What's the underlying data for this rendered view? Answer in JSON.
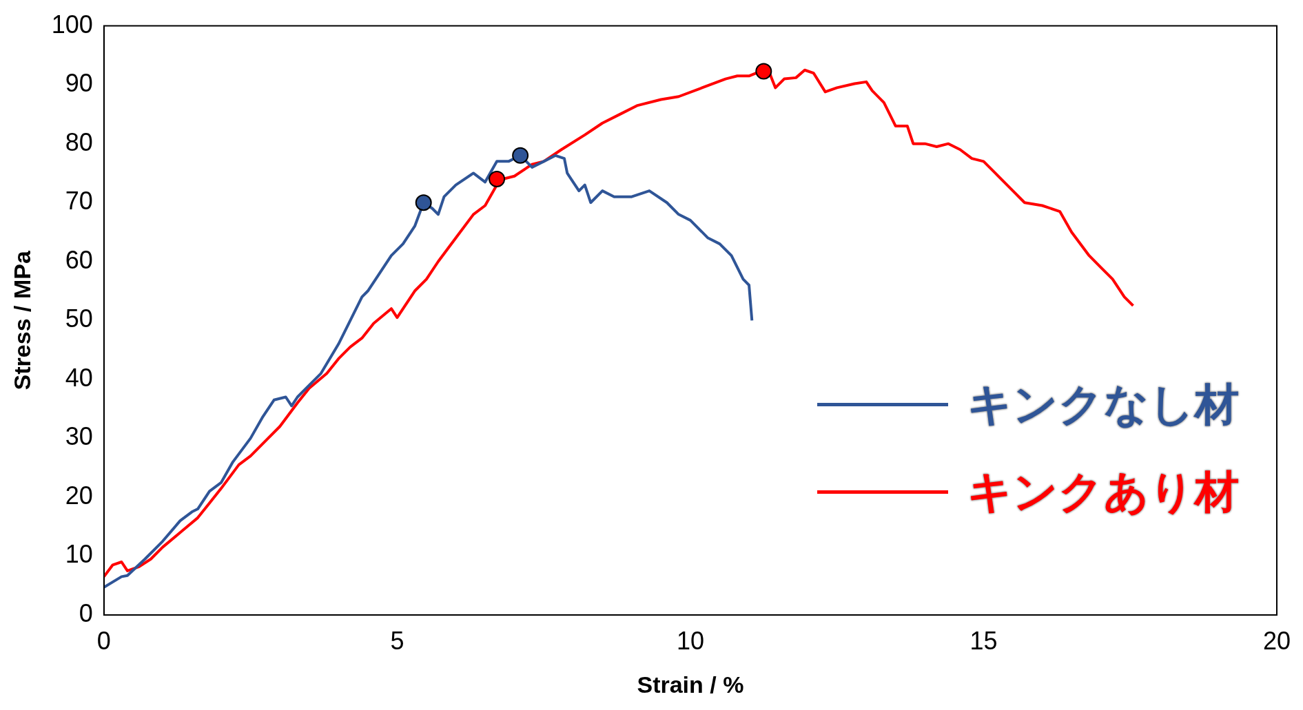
{
  "chart_data": {
    "type": "line",
    "xlabel": "Strain / %",
    "ylabel": "Stress / MPa",
    "xlim": [
      0,
      20
    ],
    "xticks": [
      0,
      5,
      10,
      15,
      20
    ],
    "ylim": [
      0,
      100
    ],
    "yticks": [
      0,
      10,
      20,
      30,
      40,
      50,
      60,
      70,
      80,
      90,
      100
    ],
    "grid": false,
    "legend": "bottom right",
    "marker": "none",
    "line_style": "solid",
    "series": [
      {
        "name": "キンクなし材",
        "color": "#2f5597",
        "x": [
          0,
          0.3,
          0.4,
          0.7,
          1,
          1.3,
          1.5,
          1.6,
          1.8,
          2,
          2.2,
          2.5,
          2.7,
          2.9,
          3.1,
          3.2,
          3.3,
          3.5,
          3.7,
          4,
          4.2,
          4.4,
          4.5,
          4.7,
          4.9,
          5.1,
          5.3,
          5.45,
          5.6,
          5.7,
          5.8,
          6,
          6.3,
          6.5,
          6.7,
          6.9,
          7.1,
          7.3,
          7.5,
          7.7,
          7.85,
          7.9,
          8.1,
          8.2,
          8.3,
          8.5,
          8.7,
          9,
          9.3,
          9.6,
          9.8,
          10,
          10.3,
          10.5,
          10.7,
          10.9,
          11,
          11.05
        ],
        "values": [
          4.7,
          6.5,
          6.7,
          9.5,
          12.5,
          16,
          17.5,
          18,
          21,
          22.5,
          26,
          30,
          33.5,
          36.5,
          37,
          35.5,
          37,
          39,
          41,
          46,
          50,
          54,
          55,
          58,
          61,
          63,
          66,
          70,
          69,
          68,
          71,
          73,
          75,
          73.5,
          77,
          77,
          78,
          76,
          77,
          78,
          77.5,
          75,
          72,
          73,
          70,
          72,
          71,
          71,
          72,
          70,
          68,
          67,
          64,
          63,
          61,
          57,
          56,
          50
        ]
      },
      {
        "name": "キンクあり材",
        "color": "#ff0000",
        "x": [
          0,
          0.15,
          0.3,
          0.4,
          0.6,
          0.8,
          1,
          1.3,
          1.6,
          1.8,
          2,
          2.3,
          2.5,
          2.8,
          3,
          3.3,
          3.5,
          3.8,
          4,
          4.2,
          4.4,
          4.6,
          4.9,
          5,
          5.3,
          5.5,
          5.7,
          6,
          6.3,
          6.5,
          6.7,
          6.8,
          7,
          7.3,
          7.5,
          7.8,
          8.2,
          8.5,
          8.8,
          9.1,
          9.5,
          9.8,
          10.2,
          10.6,
          10.8,
          11,
          11.2,
          11.35,
          11.45,
          11.6,
          11.8,
          11.95,
          12.1,
          12.3,
          12.5,
          12.8,
          13,
          13.1,
          13.3,
          13.5,
          13.7,
          13.8,
          14,
          14.2,
          14.4,
          14.6,
          14.8,
          15,
          15.2,
          15.5,
          15.7,
          16,
          16.3,
          16.5,
          16.8,
          17,
          17.2,
          17.4,
          17.55
        ],
        "values": [
          6.5,
          8.5,
          9,
          7.5,
          8.2,
          9.5,
          11.5,
          14,
          16.5,
          19,
          21.5,
          25.5,
          27,
          30,
          32,
          36,
          38.5,
          41,
          43.5,
          45.5,
          47,
          49.5,
          52,
          50.5,
          55,
          57,
          60,
          64,
          68,
          69.5,
          73,
          74,
          74.5,
          76.5,
          77,
          79,
          81.5,
          83.5,
          85,
          86.5,
          87.5,
          88,
          89.5,
          91,
          91.5,
          91.5,
          92.3,
          92,
          89.5,
          91,
          91.2,
          92.5,
          92,
          88.8,
          89.5,
          90.2,
          90.5,
          89,
          87,
          83,
          83,
          80,
          80,
          79.5,
          80,
          79,
          77.5,
          77,
          75,
          72,
          70,
          69.5,
          68.5,
          65,
          61,
          59,
          57,
          54,
          52.5
        ]
      },
      {
        "type": "scatter",
        "marker": "circle",
        "color": "#2f5597",
        "x": [
          5.45,
          7.1
        ],
        "values": [
          70,
          78
        ]
      },
      {
        "type": "scatter",
        "marker": "circle",
        "color": "#ff0000",
        "x": [
          6.7,
          11.25
        ],
        "values": [
          74,
          92.3
        ]
      }
    ]
  }
}
